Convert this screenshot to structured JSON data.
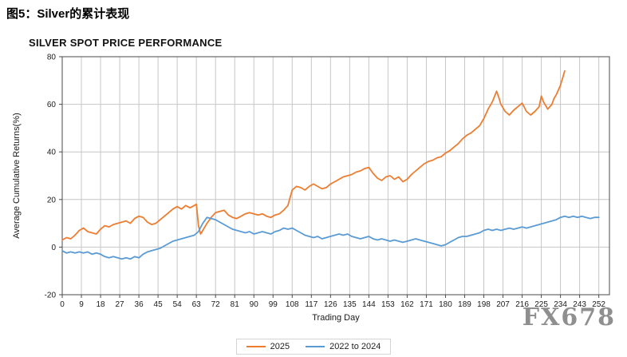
{
  "page": {
    "figure_caption": "图5：Silver的累计表现",
    "watermark": "FX678"
  },
  "chart_data": {
    "type": "line",
    "title": "SILVER SPOT PRICE PERFORMANCE",
    "xlabel": "Trading Day",
    "ylabel": "Average Cumulative Returns(%)",
    "xlim": [
      0,
      257
    ],
    "ylim": [
      -20,
      80
    ],
    "x_ticks": [
      0,
      9,
      18,
      27,
      36,
      45,
      54,
      63,
      72,
      81,
      90,
      99,
      108,
      117,
      126,
      135,
      144,
      153,
      162,
      171,
      180,
      189,
      198,
      207,
      216,
      225,
      234,
      243,
      252
    ],
    "y_ticks": [
      -20,
      0,
      20,
      40,
      60,
      80
    ],
    "grid": true,
    "grid_color": "#c6c6c6",
    "axis_color": "#4a4a4a",
    "text_color": "#1a1a1a",
    "legend_position": "bottom",
    "series": [
      {
        "name": "2025",
        "color": "#ED7D31",
        "points": [
          [
            0,
            3
          ],
          [
            2,
            4
          ],
          [
            4,
            3.5
          ],
          [
            6,
            5
          ],
          [
            8,
            7
          ],
          [
            10,
            8
          ],
          [
            12,
            6.5
          ],
          [
            14,
            6
          ],
          [
            16,
            5.5
          ],
          [
            18,
            7.5
          ],
          [
            20,
            9
          ],
          [
            22,
            8.5
          ],
          [
            24,
            9.5
          ],
          [
            26,
            10
          ],
          [
            28,
            10.5
          ],
          [
            30,
            11
          ],
          [
            32,
            10
          ],
          [
            34,
            12
          ],
          [
            36,
            13
          ],
          [
            38,
            12.5
          ],
          [
            40,
            10.5
          ],
          [
            42,
            9.5
          ],
          [
            44,
            10
          ],
          [
            46,
            11.5
          ],
          [
            48,
            13
          ],
          [
            50,
            14.5
          ],
          [
            52,
            16
          ],
          [
            54,
            17
          ],
          [
            56,
            16
          ],
          [
            58,
            17.5
          ],
          [
            60,
            16.5
          ],
          [
            62,
            17.5
          ],
          [
            63,
            18
          ],
          [
            64,
            9
          ],
          [
            65,
            5.5
          ],
          [
            66,
            7
          ],
          [
            68,
            10
          ],
          [
            70,
            12.5
          ],
          [
            72,
            14.5
          ],
          [
            74,
            15
          ],
          [
            76,
            15.5
          ],
          [
            78,
            13.5
          ],
          [
            80,
            12.5
          ],
          [
            82,
            12
          ],
          [
            84,
            13
          ],
          [
            86,
            14
          ],
          [
            88,
            14.5
          ],
          [
            90,
            14
          ],
          [
            92,
            13.5
          ],
          [
            94,
            14
          ],
          [
            96,
            13
          ],
          [
            98,
            12.5
          ],
          [
            100,
            13.5
          ],
          [
            102,
            14
          ],
          [
            104,
            15.5
          ],
          [
            106,
            17.5
          ],
          [
            108,
            24
          ],
          [
            110,
            25.5
          ],
          [
            112,
            25
          ],
          [
            114,
            24
          ],
          [
            116,
            25.5
          ],
          [
            118,
            26.5
          ],
          [
            120,
            25.5
          ],
          [
            122,
            24.5
          ],
          [
            124,
            25
          ],
          [
            126,
            26.5
          ],
          [
            128,
            27.5
          ],
          [
            130,
            28.5
          ],
          [
            132,
            29.5
          ],
          [
            134,
            30
          ],
          [
            136,
            30.5
          ],
          [
            138,
            31.5
          ],
          [
            140,
            32
          ],
          [
            142,
            33
          ],
          [
            144,
            33.5
          ],
          [
            146,
            31
          ],
          [
            148,
            29
          ],
          [
            150,
            28
          ],
          [
            152,
            29.5
          ],
          [
            154,
            30
          ],
          [
            156,
            28.5
          ],
          [
            158,
            29.5
          ],
          [
            160,
            27.5
          ],
          [
            162,
            28.5
          ],
          [
            164,
            30.5
          ],
          [
            166,
            32
          ],
          [
            168,
            33.5
          ],
          [
            170,
            35
          ],
          [
            172,
            36
          ],
          [
            174,
            36.5
          ],
          [
            176,
            37.5
          ],
          [
            178,
            38
          ],
          [
            180,
            39.5
          ],
          [
            182,
            40.5
          ],
          [
            184,
            42
          ],
          [
            186,
            43.5
          ],
          [
            188,
            45.5
          ],
          [
            190,
            47
          ],
          [
            192,
            48
          ],
          [
            194,
            49.5
          ],
          [
            196,
            51
          ],
          [
            198,
            54
          ],
          [
            200,
            58
          ],
          [
            202,
            61
          ],
          [
            204,
            65.5
          ],
          [
            205,
            63
          ],
          [
            206,
            60
          ],
          [
            208,
            57
          ],
          [
            210,
            55.5
          ],
          [
            212,
            57.5
          ],
          [
            214,
            59
          ],
          [
            216,
            60.5
          ],
          [
            218,
            57
          ],
          [
            220,
            55.5
          ],
          [
            222,
            57
          ],
          [
            224,
            59
          ],
          [
            225,
            63.5
          ],
          [
            226,
            61
          ],
          [
            228,
            58
          ],
          [
            230,
            60
          ],
          [
            231,
            62.5
          ],
          [
            232,
            64
          ],
          [
            234,
            68
          ],
          [
            235,
            71
          ],
          [
            236,
            74
          ]
        ]
      },
      {
        "name": "2022 to 2024",
        "color": "#5B9BD5",
        "points": [
          [
            0,
            -1.5
          ],
          [
            2,
            -2.5
          ],
          [
            4,
            -2
          ],
          [
            6,
            -2.5
          ],
          [
            8,
            -2
          ],
          [
            10,
            -2.5
          ],
          [
            12,
            -2
          ],
          [
            14,
            -3
          ],
          [
            16,
            -2.5
          ],
          [
            18,
            -3
          ],
          [
            20,
            -4
          ],
          [
            22,
            -4.5
          ],
          [
            24,
            -4
          ],
          [
            26,
            -4.5
          ],
          [
            28,
            -5
          ],
          [
            30,
            -4.5
          ],
          [
            32,
            -5
          ],
          [
            34,
            -4
          ],
          [
            36,
            -4.5
          ],
          [
            38,
            -3
          ],
          [
            40,
            -2
          ],
          [
            42,
            -1.5
          ],
          [
            44,
            -1
          ],
          [
            46,
            -0.5
          ],
          [
            48,
            0.5
          ],
          [
            50,
            1.5
          ],
          [
            52,
            2.5
          ],
          [
            54,
            3
          ],
          [
            56,
            3.5
          ],
          [
            58,
            4
          ],
          [
            60,
            4.5
          ],
          [
            62,
            5
          ],
          [
            64,
            6.5
          ],
          [
            66,
            10
          ],
          [
            68,
            12.5
          ],
          [
            70,
            12
          ],
          [
            72,
            11.5
          ],
          [
            74,
            10.5
          ],
          [
            76,
            9.5
          ],
          [
            78,
            8.5
          ],
          [
            80,
            7.5
          ],
          [
            82,
            7
          ],
          [
            84,
            6.5
          ],
          [
            86,
            6
          ],
          [
            88,
            6.5
          ],
          [
            90,
            5.5
          ],
          [
            92,
            6
          ],
          [
            94,
            6.5
          ],
          [
            96,
            6
          ],
          [
            98,
            5.5
          ],
          [
            100,
            6.5
          ],
          [
            102,
            7
          ],
          [
            104,
            8
          ],
          [
            106,
            7.5
          ],
          [
            108,
            8
          ],
          [
            110,
            7
          ],
          [
            112,
            6
          ],
          [
            114,
            5
          ],
          [
            116,
            4.5
          ],
          [
            118,
            4
          ],
          [
            120,
            4.5
          ],
          [
            122,
            3.5
          ],
          [
            124,
            4
          ],
          [
            126,
            4.5
          ],
          [
            128,
            5
          ],
          [
            130,
            5.5
          ],
          [
            132,
            5
          ],
          [
            134,
            5.5
          ],
          [
            136,
            4.5
          ],
          [
            138,
            4
          ],
          [
            140,
            3.5
          ],
          [
            142,
            4
          ],
          [
            144,
            4.5
          ],
          [
            146,
            3.5
          ],
          [
            148,
            3
          ],
          [
            150,
            3.5
          ],
          [
            152,
            3
          ],
          [
            154,
            2.5
          ],
          [
            156,
            3
          ],
          [
            158,
            2.5
          ],
          [
            160,
            2
          ],
          [
            162,
            2.5
          ],
          [
            164,
            3
          ],
          [
            166,
            3.5
          ],
          [
            168,
            3
          ],
          [
            170,
            2.5
          ],
          [
            172,
            2
          ],
          [
            174,
            1.5
          ],
          [
            176,
            1
          ],
          [
            178,
            0.5
          ],
          [
            180,
            1
          ],
          [
            182,
            2
          ],
          [
            184,
            3
          ],
          [
            186,
            4
          ],
          [
            188,
            4.5
          ],
          [
            190,
            4.5
          ],
          [
            192,
            5
          ],
          [
            194,
            5.5
          ],
          [
            196,
            6
          ],
          [
            198,
            7
          ],
          [
            200,
            7.5
          ],
          [
            202,
            7
          ],
          [
            204,
            7.5
          ],
          [
            206,
            7
          ],
          [
            208,
            7.5
          ],
          [
            210,
            8
          ],
          [
            212,
            7.5
          ],
          [
            214,
            8
          ],
          [
            216,
            8.5
          ],
          [
            218,
            8
          ],
          [
            220,
            8.5
          ],
          [
            222,
            9
          ],
          [
            224,
            9.5
          ],
          [
            226,
            10
          ],
          [
            228,
            10.5
          ],
          [
            230,
            11
          ],
          [
            232,
            11.5
          ],
          [
            234,
            12.5
          ],
          [
            236,
            13
          ],
          [
            238,
            12.5
          ],
          [
            240,
            13
          ],
          [
            242,
            12.5
          ],
          [
            244,
            13
          ],
          [
            246,
            12.5
          ],
          [
            248,
            12
          ],
          [
            250,
            12.5
          ],
          [
            252,
            12.5
          ]
        ]
      }
    ]
  }
}
